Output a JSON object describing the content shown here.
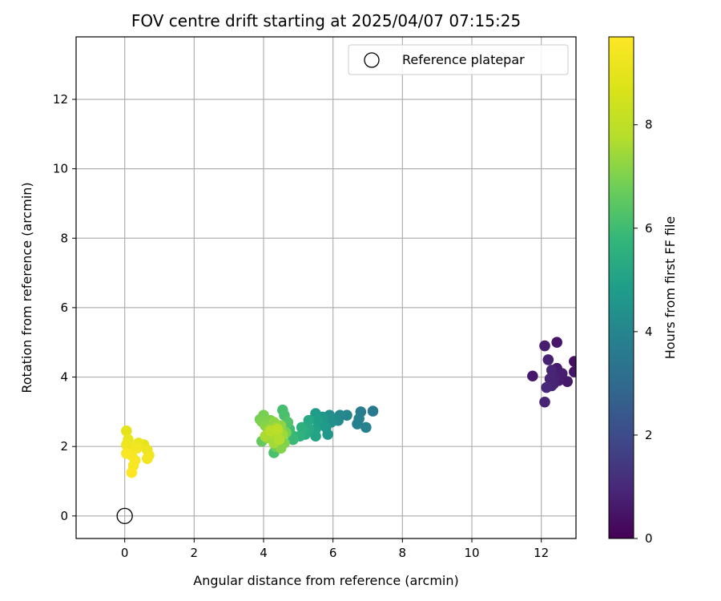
{
  "chart_data": {
    "type": "scatter",
    "title": "FOV centre drift starting at 2025/04/07 07:15:25",
    "xlabel": "Angular distance from reference (arcmin)",
    "ylabel": "Rotation from reference (arcmin)",
    "xlim": [
      -1.4,
      13.0
    ],
    "ylim": [
      -0.65,
      13.8
    ],
    "xticks": [
      "0",
      "2",
      "4",
      "6",
      "8",
      "10",
      "12"
    ],
    "yticks": [
      "0",
      "2",
      "4",
      "6",
      "8",
      "10",
      "12"
    ],
    "grid": true,
    "legend": {
      "placement": "top-right",
      "entries": [
        "Reference platepar"
      ]
    },
    "colorbar": {
      "label": "Hours from first FF file",
      "range": [
        0,
        9.7
      ],
      "ticks": [
        "0",
        "2",
        "4",
        "6",
        "8"
      ],
      "colormap": "viridis"
    },
    "reference_point": {
      "x": 0,
      "y": 0
    },
    "points": [
      {
        "x": 12.1,
        "y": 4.9,
        "h": 0.7
      },
      {
        "x": 12.45,
        "y": 5.0,
        "h": 0.5
      },
      {
        "x": 12.2,
        "y": 4.5,
        "h": 0.8
      },
      {
        "x": 12.3,
        "y": 4.2,
        "h": 0.9
      },
      {
        "x": 12.45,
        "y": 4.25,
        "h": 0.6
      },
      {
        "x": 12.6,
        "y": 4.1,
        "h": 0.7
      },
      {
        "x": 11.75,
        "y": 4.03,
        "h": 0.6
      },
      {
        "x": 12.4,
        "y": 4.0,
        "h": 0.8
      },
      {
        "x": 12.25,
        "y": 3.95,
        "h": 0.9
      },
      {
        "x": 12.5,
        "y": 3.9,
        "h": 0.7
      },
      {
        "x": 12.35,
        "y": 3.8,
        "h": 0.8
      },
      {
        "x": 12.15,
        "y": 3.7,
        "h": 1.0
      },
      {
        "x": 12.3,
        "y": 3.75,
        "h": 0.9
      },
      {
        "x": 12.75,
        "y": 3.87,
        "h": 0.6
      },
      {
        "x": 12.1,
        "y": 3.28,
        "h": 0.9
      },
      {
        "x": 12.95,
        "y": 4.45,
        "h": 0.4
      },
      {
        "x": 12.95,
        "y": 4.15,
        "h": 0.5
      },
      {
        "x": 7.15,
        "y": 3.02,
        "h": 3.6
      },
      {
        "x": 6.8,
        "y": 3.0,
        "h": 3.7
      },
      {
        "x": 6.75,
        "y": 2.8,
        "h": 3.8
      },
      {
        "x": 6.95,
        "y": 2.55,
        "h": 3.9
      },
      {
        "x": 6.7,
        "y": 2.65,
        "h": 3.8
      },
      {
        "x": 6.4,
        "y": 2.9,
        "h": 4.0
      },
      {
        "x": 6.2,
        "y": 2.9,
        "h": 4.1
      },
      {
        "x": 6.15,
        "y": 2.75,
        "h": 4.2
      },
      {
        "x": 5.9,
        "y": 2.9,
        "h": 4.3
      },
      {
        "x": 5.95,
        "y": 2.7,
        "h": 4.4
      },
      {
        "x": 5.8,
        "y": 2.55,
        "h": 4.5
      },
      {
        "x": 5.7,
        "y": 2.85,
        "h": 4.6
      },
      {
        "x": 5.75,
        "y": 2.6,
        "h": 4.7
      },
      {
        "x": 5.85,
        "y": 2.35,
        "h": 4.6
      },
      {
        "x": 5.5,
        "y": 2.95,
        "h": 4.8
      },
      {
        "x": 5.55,
        "y": 2.75,
        "h": 4.9
      },
      {
        "x": 5.5,
        "y": 2.5,
        "h": 5.0
      },
      {
        "x": 5.5,
        "y": 2.3,
        "h": 5.1
      },
      {
        "x": 5.3,
        "y": 2.75,
        "h": 5.2
      },
      {
        "x": 5.3,
        "y": 2.5,
        "h": 5.3
      },
      {
        "x": 5.2,
        "y": 2.35,
        "h": 5.4
      },
      {
        "x": 5.1,
        "y": 2.55,
        "h": 5.5
      },
      {
        "x": 5.05,
        "y": 2.3,
        "h": 5.6
      },
      {
        "x": 4.85,
        "y": 2.2,
        "h": 5.9
      },
      {
        "x": 4.75,
        "y": 2.5,
        "h": 6.0
      },
      {
        "x": 4.85,
        "y": 2.3,
        "h": 5.8
      },
      {
        "x": 4.55,
        "y": 3.05,
        "h": 6.1
      },
      {
        "x": 4.6,
        "y": 2.9,
        "h": 6.2
      },
      {
        "x": 4.7,
        "y": 2.7,
        "h": 6.3
      },
      {
        "x": 3.9,
        "y": 2.78,
        "h": 6.8
      },
      {
        "x": 4.0,
        "y": 2.9,
        "h": 6.9
      },
      {
        "x": 3.95,
        "y": 2.72,
        "h": 7.0
      },
      {
        "x": 4.05,
        "y": 2.6,
        "h": 7.1
      },
      {
        "x": 4.2,
        "y": 2.75,
        "h": 7.0
      },
      {
        "x": 4.3,
        "y": 2.7,
        "h": 7.2
      },
      {
        "x": 4.15,
        "y": 2.5,
        "h": 7.3
      },
      {
        "x": 4.35,
        "y": 2.55,
        "h": 7.4
      },
      {
        "x": 4.5,
        "y": 2.6,
        "h": 7.2
      },
      {
        "x": 4.4,
        "y": 2.4,
        "h": 7.5
      },
      {
        "x": 4.25,
        "y": 2.35,
        "h": 7.6
      },
      {
        "x": 4.55,
        "y": 2.35,
        "h": 7.4
      },
      {
        "x": 4.45,
        "y": 2.2,
        "h": 7.7
      },
      {
        "x": 4.3,
        "y": 2.1,
        "h": 7.5
      },
      {
        "x": 4.1,
        "y": 2.25,
        "h": 7.3
      },
      {
        "x": 3.95,
        "y": 2.15,
        "h": 6.6
      },
      {
        "x": 4.6,
        "y": 2.1,
        "h": 7.0
      },
      {
        "x": 4.65,
        "y": 2.4,
        "h": 6.9
      },
      {
        "x": 4.35,
        "y": 2.0,
        "h": 6.7
      },
      {
        "x": 4.3,
        "y": 1.82,
        "h": 6.2
      },
      {
        "x": 4.5,
        "y": 1.95,
        "h": 7.1
      },
      {
        "x": 4.2,
        "y": 2.45,
        "h": 7.8
      },
      {
        "x": 4.4,
        "y": 2.5,
        "h": 7.9
      },
      {
        "x": 4.05,
        "y": 2.3,
        "h": 7.6
      },
      {
        "x": 0.05,
        "y": 2.45,
        "h": 9.0
      },
      {
        "x": 0.1,
        "y": 2.2,
        "h": 9.1
      },
      {
        "x": 0.05,
        "y": 2.05,
        "h": 9.3
      },
      {
        "x": 0.2,
        "y": 1.95,
        "h": 9.2
      },
      {
        "x": 0.4,
        "y": 2.1,
        "h": 9.1
      },
      {
        "x": 0.35,
        "y": 1.95,
        "h": 9.4
      },
      {
        "x": 0.55,
        "y": 2.05,
        "h": 9.0
      },
      {
        "x": 0.65,
        "y": 1.9,
        "h": 9.2
      },
      {
        "x": 0.7,
        "y": 1.75,
        "h": 9.3
      },
      {
        "x": 0.65,
        "y": 1.65,
        "h": 9.4
      },
      {
        "x": 0.05,
        "y": 1.8,
        "h": 9.6
      },
      {
        "x": 0.2,
        "y": 1.75,
        "h": 9.5
      },
      {
        "x": 0.3,
        "y": 1.6,
        "h": 9.6
      },
      {
        "x": 0.25,
        "y": 1.45,
        "h": 9.5
      },
      {
        "x": 0.2,
        "y": 1.25,
        "h": 9.7
      }
    ]
  }
}
